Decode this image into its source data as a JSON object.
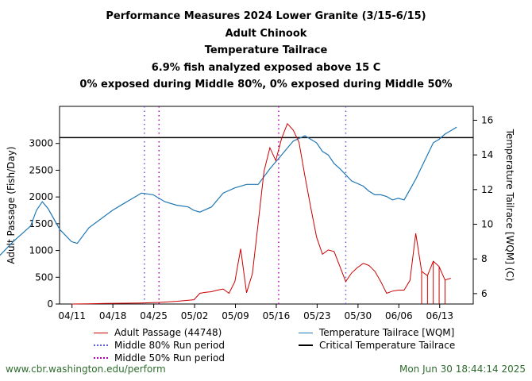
{
  "title_lines": [
    "Performance Measures 2024 Lower Granite (3/15-6/15)",
    "Adult Chinook",
    "Temperature Tailrace",
    "6.9% fish analyzed exposed above 15 C",
    "0% exposed during Middle 80%, 0% exposed during Middle 50%"
  ],
  "footer": {
    "url": "www.cbr.washington.edu/perform",
    "timestamp": "Mon Jun 30 18:44:14 2025"
  },
  "colors": {
    "passage": "#cc0000",
    "temperature": "#1f77b4",
    "critical": "#000000",
    "mid80": "#5b5bd6",
    "mid50": "#b000b0",
    "footer_text": "#2e6b2e"
  },
  "chart_data": {
    "type": "line",
    "xlabel": "",
    "ylabel": "Adult Passage (Fish/Day)",
    "y2label": "Temperature Tailrace [WQM] (C)",
    "ylim": [
      0,
      3500
    ],
    "y2lim": [
      5.4,
      16.8
    ],
    "yticks": [
      0,
      500,
      1000,
      1500,
      2000,
      2500,
      3000
    ],
    "y2ticks": [
      6,
      8,
      10,
      12,
      14,
      16
    ],
    "x_tick_labels": [
      "04/11",
      "04/18",
      "04/25",
      "05/02",
      "05/09",
      "05/16",
      "05/23",
      "05/30",
      "06/06",
      "06/13"
    ],
    "legend": [
      {
        "label": "Adult Passage (44748)",
        "key": "passage"
      },
      {
        "label": "Temperature Tailrace [WQM]",
        "key": "temperature"
      },
      {
        "label": "Middle 80% Run period",
        "key": "mid80"
      },
      {
        "label": "Critical Temperature Tailrace",
        "key": "critical"
      },
      {
        "label": "Middle 50% Run period",
        "key": "mid50"
      }
    ],
    "critical_temperature": 15,
    "middle80_days": [
      12.5,
      47
    ],
    "middle50_days": [
      15,
      35.5
    ],
    "x_days_note": "days after 04/09",
    "series": [
      {
        "name": "Adult Passage (44748)",
        "axis": "left",
        "x_day": [
          0,
          3,
          6,
          9,
          12,
          15,
          18,
          21,
          22,
          23,
          24,
          25,
          26,
          27,
          28,
          29,
          30,
          31,
          32,
          33,
          34,
          35,
          36,
          37,
          38,
          39,
          40,
          41,
          42,
          43,
          44,
          45,
          46,
          47,
          48,
          49,
          50,
          50.5,
          51,
          52,
          53,
          54,
          55,
          56,
          57,
          58,
          59,
          60,
          61,
          62,
          63,
          64,
          65
        ],
        "values": [
          0,
          5,
          10,
          15,
          20,
          30,
          50,
          80,
          200,
          220,
          230,
          260,
          280,
          200,
          420,
          1030,
          210,
          570,
          1520,
          2480,
          2920,
          2680,
          3090,
          3370,
          3250,
          3020,
          2390,
          1810,
          1250,
          930,
          1010,
          980,
          700,
          420,
          580,
          680,
          760,
          740,
          720,
          610,
          420,
          200,
          240,
          260,
          260,
          440,
          1320,
          610,
          530,
          800,
          700,
          450,
          480
        ]
      },
      {
        "name": "Temperature Tailrace [WQM]",
        "axis": "right",
        "x_day": [
          0,
          2,
          4,
          6,
          7,
          8,
          9,
          10,
          12,
          14,
          15,
          17,
          19,
          21,
          23,
          25,
          26,
          28,
          30,
          32,
          34,
          35,
          36,
          38,
          40,
          42,
          44,
          46,
          48,
          50,
          52,
          54,
          56,
          57,
          58,
          59,
          60,
          62,
          64,
          65,
          66,
          67,
          68,
          69,
          70,
          71,
          72,
          73,
          74,
          75,
          76,
          77,
          78,
          79,
          80
        ],
        "values": [
          7.6,
          8.3,
          9.0,
          9.6,
          9.9,
          10.8,
          11.3,
          10.9,
          9.7,
          9.0,
          8.9,
          9.8,
          10.3,
          10.8,
          11.2,
          11.6,
          11.8,
          11.7,
          11.3,
          11.1,
          11.0,
          10.8,
          10.7,
          11.0,
          11.8,
          12.1,
          12.3,
          12.3,
          13.2,
          14.0,
          14.8,
          15.1,
          14.7,
          14.2,
          14.0,
          13.5,
          13.2,
          12.5,
          12.2,
          11.9,
          11.7,
          11.7,
          11.6,
          11.4,
          11.5,
          11.4,
          12.0,
          12.6,
          13.3,
          14.0,
          14.7,
          14.9,
          15.2,
          15.4,
          15.6
        ]
      }
    ]
  }
}
